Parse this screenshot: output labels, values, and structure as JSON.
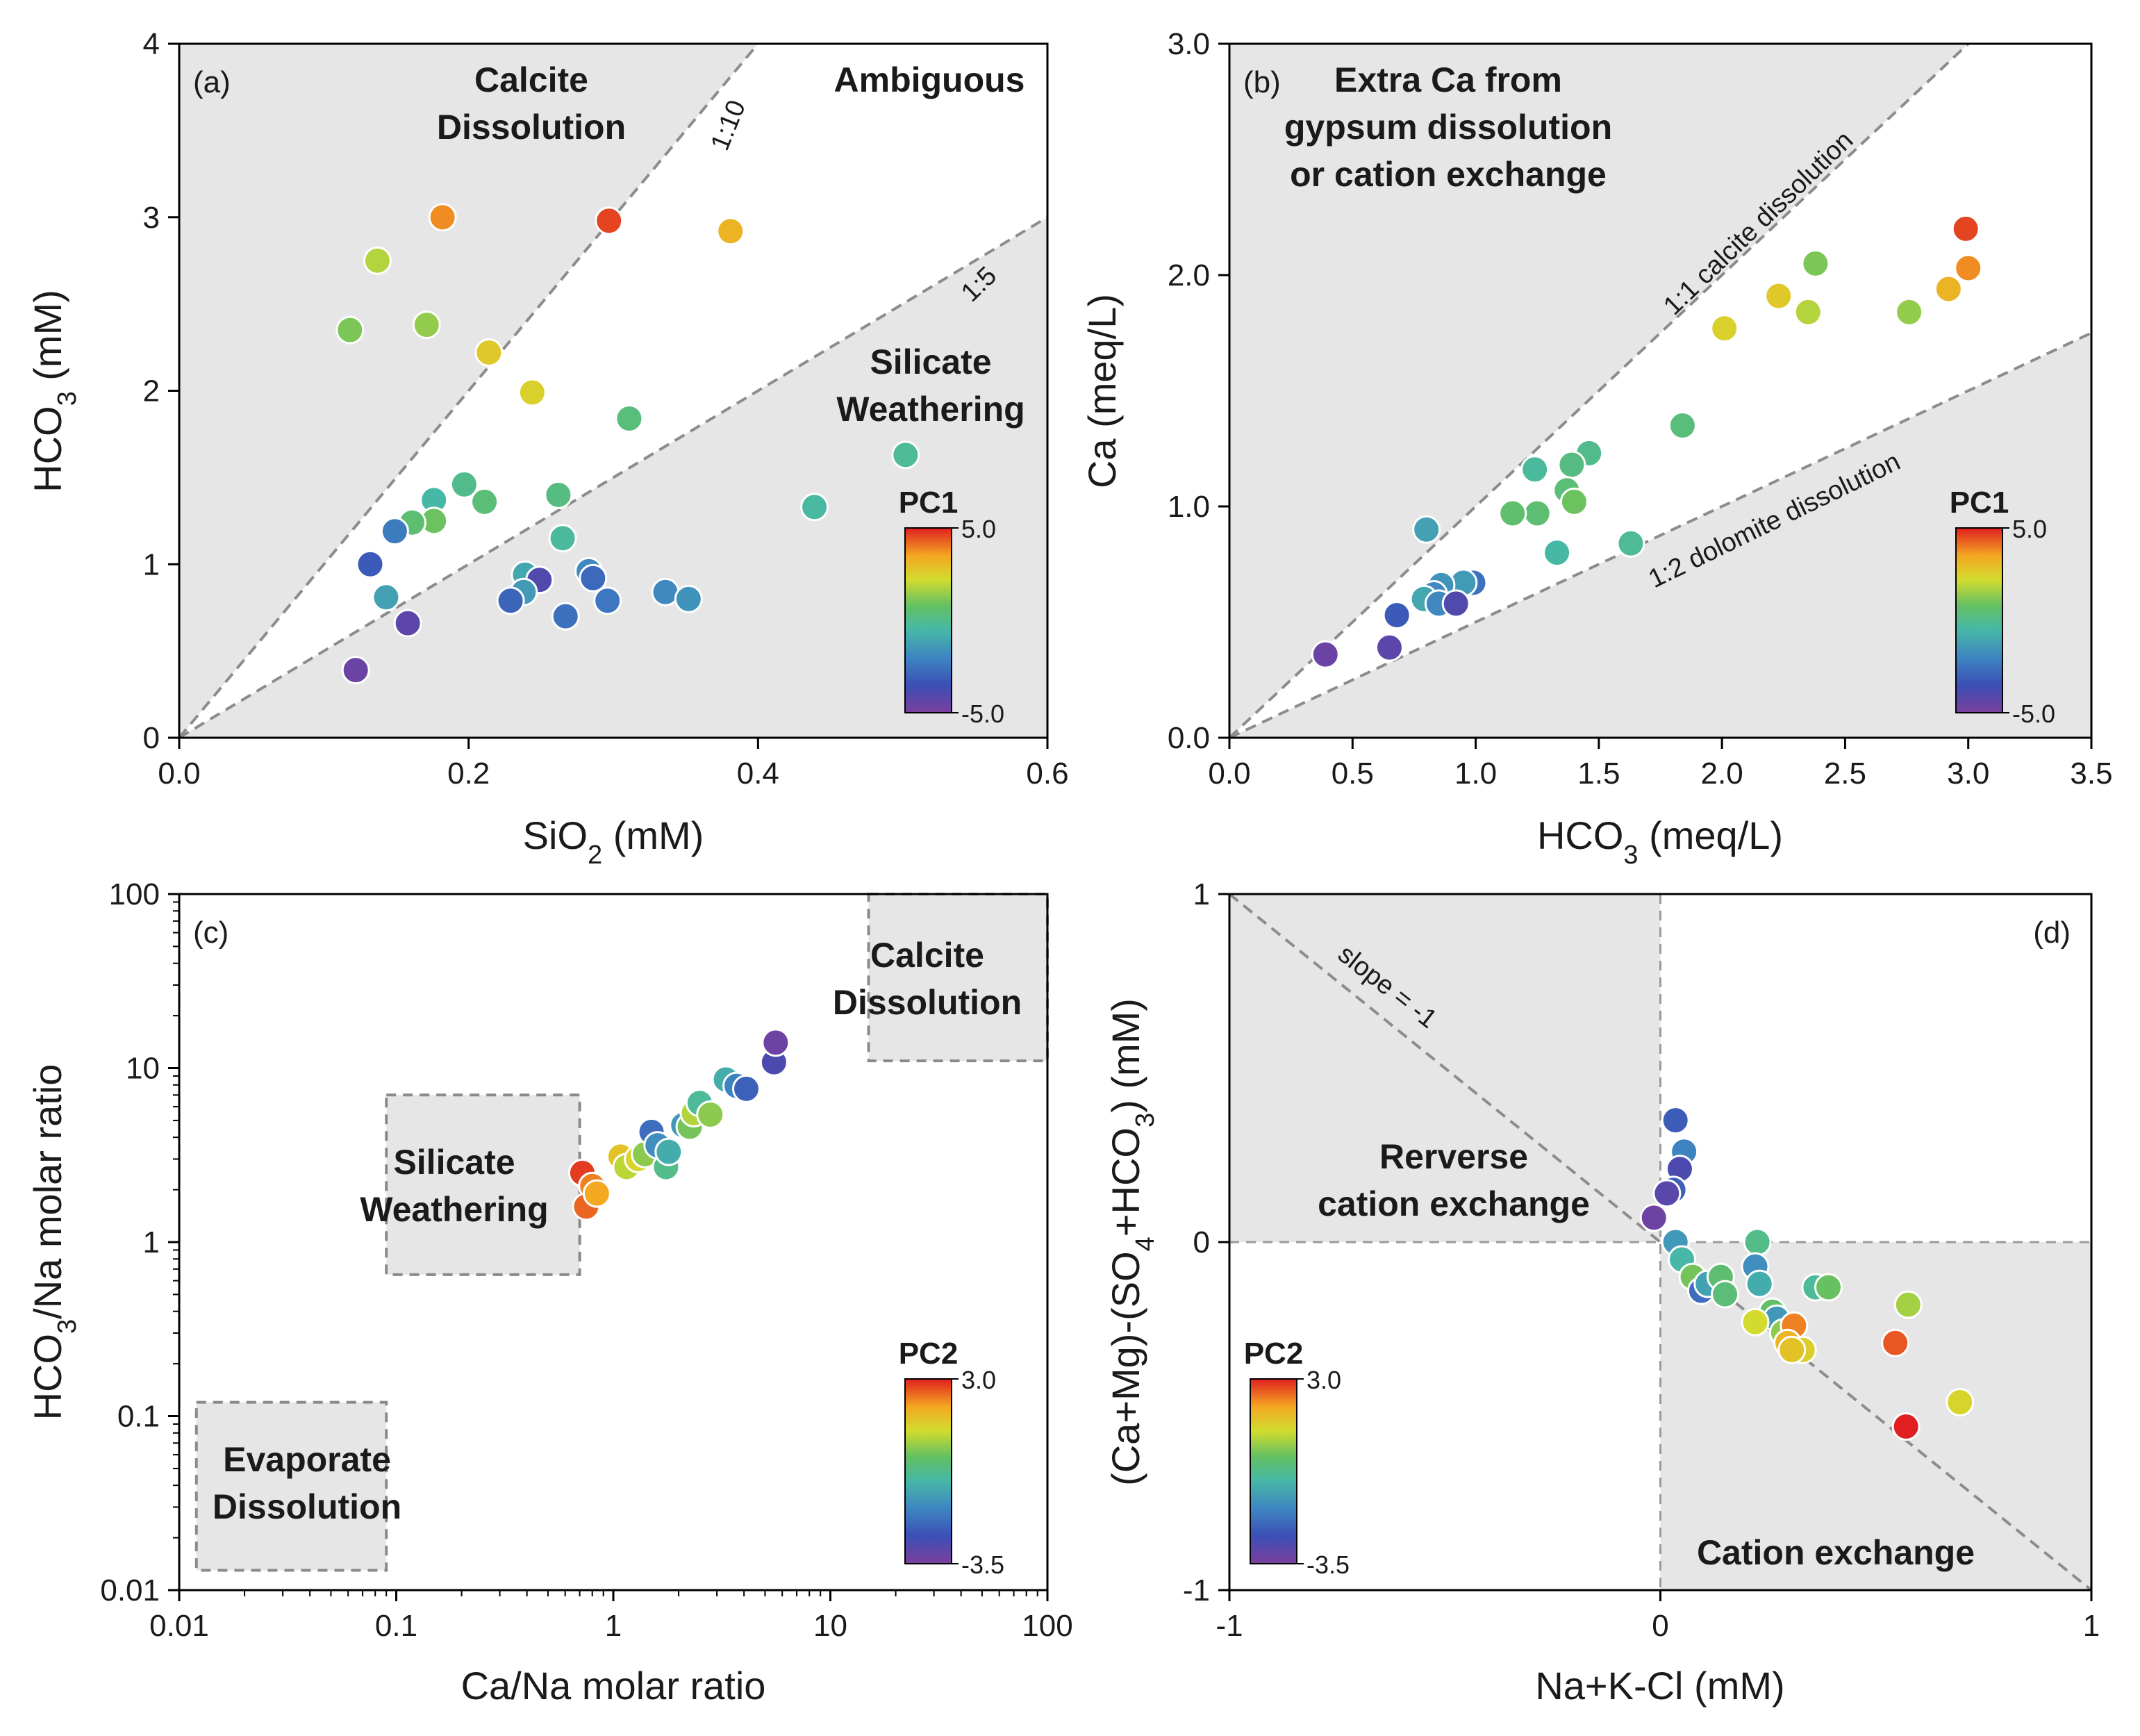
{
  "chart_data": [
    {
      "id": "a",
      "type": "scatter",
      "panel_label": "(a)",
      "xlabel": "SiO2 (mM)",
      "ylabel": "HCO3 (mM)",
      "xlim": [
        0,
        0.6
      ],
      "ylim": [
        0,
        4
      ],
      "xscale": "linear",
      "yscale": "linear",
      "xticks": [
        0,
        0.2,
        0.4,
        0.6
      ],
      "xtick_labels": [
        "0.0",
        "0.2",
        "0.4",
        "0.6"
      ],
      "yticks": [
        0,
        1,
        2,
        3,
        4
      ],
      "ytick_labels": [
        "0",
        "1",
        "2",
        "3",
        "4"
      ],
      "regions": [
        {
          "name": "calcite-dissolution-region",
          "polygon": [
            [
              0,
              0
            ],
            [
              0.0,
              4
            ],
            [
              0.4,
              4
            ]
          ]
        },
        {
          "name": "silicate-weathering-region",
          "polygon": [
            [
              0,
              0
            ],
            [
              0.6,
              3
            ],
            [
              0.6,
              0
            ]
          ]
        }
      ],
      "lines": [
        {
          "name": "ratio-1-10-line",
          "label": "1:10",
          "from": [
            0,
            0
          ],
          "to": [
            0.4,
            4
          ]
        },
        {
          "name": "ratio-1-5-line",
          "label": "1:5",
          "from": [
            0,
            0
          ],
          "to": [
            0.6,
            3
          ]
        }
      ],
      "region_labels": [
        {
          "lines": [
            "Calcite",
            "Dissolution"
          ]
        },
        {
          "lines": [
            "Ambiguous"
          ]
        },
        {
          "lines": [
            "Silicate",
            "Weathering"
          ]
        }
      ],
      "colorbar": {
        "title": "PC1",
        "max_label": "5.0",
        "min_label": "-5.0",
        "min": -5,
        "max": 5
      },
      "points": [
        {
          "x": 0.182,
          "y": 3.0,
          "c": 3.8
        },
        {
          "x": 0.297,
          "y": 2.98,
          "c": 4.6
        },
        {
          "x": 0.381,
          "y": 2.92,
          "c": 3.2
        },
        {
          "x": 0.137,
          "y": 2.75,
          "c": 1.8
        },
        {
          "x": 0.118,
          "y": 2.35,
          "c": 1.1
        },
        {
          "x": 0.171,
          "y": 2.38,
          "c": 1.4
        },
        {
          "x": 0.214,
          "y": 2.22,
          "c": 2.7
        },
        {
          "x": 0.244,
          "y": 1.99,
          "c": 2.5
        },
        {
          "x": 0.311,
          "y": 1.84,
          "c": 0.3
        },
        {
          "x": 0.502,
          "y": 1.63,
          "c": -0.2
        },
        {
          "x": 0.439,
          "y": 1.33,
          "c": -0.4
        },
        {
          "x": 0.197,
          "y": 1.46,
          "c": 0.0
        },
        {
          "x": 0.211,
          "y": 1.36,
          "c": 0.4
        },
        {
          "x": 0.176,
          "y": 1.37,
          "c": -0.5
        },
        {
          "x": 0.176,
          "y": 1.25,
          "c": 0.9
        },
        {
          "x": 0.161,
          "y": 1.24,
          "c": 0.5
        },
        {
          "x": 0.262,
          "y": 1.4,
          "c": 0.2
        },
        {
          "x": 0.265,
          "y": 1.15,
          "c": -0.3
        },
        {
          "x": 0.149,
          "y": 1.19,
          "c": -2.3
        },
        {
          "x": 0.132,
          "y": 1.0,
          "c": -3.2
        },
        {
          "x": 0.143,
          "y": 0.81,
          "c": -1.2
        },
        {
          "x": 0.158,
          "y": 0.66,
          "c": -4.3
        },
        {
          "x": 0.122,
          "y": 0.39,
          "c": -4.6
        },
        {
          "x": 0.239,
          "y": 0.94,
          "c": -1.0
        },
        {
          "x": 0.249,
          "y": 0.91,
          "c": -4.0
        },
        {
          "x": 0.238,
          "y": 0.84,
          "c": -1.4
        },
        {
          "x": 0.229,
          "y": 0.79,
          "c": -2.9
        },
        {
          "x": 0.283,
          "y": 0.96,
          "c": -1.9
        },
        {
          "x": 0.286,
          "y": 0.92,
          "c": -2.8
        },
        {
          "x": 0.267,
          "y": 0.7,
          "c": -2.6
        },
        {
          "x": 0.296,
          "y": 0.79,
          "c": -2.4
        },
        {
          "x": 0.336,
          "y": 0.84,
          "c": -1.9
        },
        {
          "x": 0.352,
          "y": 0.8,
          "c": -1.6
        }
      ]
    },
    {
      "id": "b",
      "type": "scatter",
      "panel_label": "(b)",
      "xlabel": "HCO3 (meq/L)",
      "ylabel": "Ca (meq/L)",
      "xlim": [
        0,
        3.5
      ],
      "ylim": [
        0,
        3.0
      ],
      "xscale": "linear",
      "yscale": "linear",
      "xticks": [
        0,
        0.5,
        1.0,
        1.5,
        2.0,
        2.5,
        3.0,
        3.5
      ],
      "xtick_labels": [
        "0.0",
        "0.5",
        "1.0",
        "1.5",
        "2.0",
        "2.5",
        "3.0",
        "3.5"
      ],
      "yticks": [
        0,
        1.0,
        2.0,
        3.0
      ],
      "ytick_labels": [
        "0.0",
        "1.0",
        "2.0",
        "3.0"
      ],
      "regions": [
        {
          "name": "extra-ca-region",
          "polygon": [
            [
              0,
              0
            ],
            [
              0,
              3
            ],
            [
              3,
              3
            ]
          ]
        },
        {
          "name": "lower-region",
          "polygon": [
            [
              0,
              0
            ],
            [
              3.5,
              1.75
            ],
            [
              3.5,
              0
            ]
          ]
        }
      ],
      "lines": [
        {
          "name": "calcite-1-1-line",
          "label": "1:1 calcite dissolution",
          "from": [
            0,
            0
          ],
          "to": [
            3,
            3
          ]
        },
        {
          "name": "dolomite-1-2-line",
          "label": "1:2 dolomite dissolution",
          "from": [
            0,
            0
          ],
          "to": [
            3.5,
            1.75
          ]
        }
      ],
      "region_labels": [
        {
          "lines": [
            "Extra Ca from",
            "gypsum dissolution",
            "or cation exchange"
          ]
        }
      ],
      "colorbar": {
        "title": "PC1",
        "max_label": "5.0",
        "min_label": "-5.0",
        "min": -5,
        "max": 5
      },
      "points": [
        {
          "x": 2.99,
          "y": 2.2,
          "c": 4.6
        },
        {
          "x": 3.0,
          "y": 2.03,
          "c": 3.8
        },
        {
          "x": 2.92,
          "y": 1.94,
          "c": 3.2
        },
        {
          "x": 2.76,
          "y": 1.84,
          "c": 1.4
        },
        {
          "x": 2.38,
          "y": 2.05,
          "c": 1.1
        },
        {
          "x": 2.23,
          "y": 1.91,
          "c": 2.7
        },
        {
          "x": 2.35,
          "y": 1.84,
          "c": 1.8
        },
        {
          "x": 2.01,
          "y": 1.77,
          "c": 2.5
        },
        {
          "x": 1.84,
          "y": 1.35,
          "c": 0.3
        },
        {
          "x": 1.63,
          "y": 0.84,
          "c": -0.2
        },
        {
          "x": 1.46,
          "y": 1.23,
          "c": 0.0
        },
        {
          "x": 1.39,
          "y": 1.18,
          "c": 0.2
        },
        {
          "x": 1.37,
          "y": 1.07,
          "c": 0.4
        },
        {
          "x": 1.4,
          "y": 1.02,
          "c": 0.9
        },
        {
          "x": 1.24,
          "y": 1.16,
          "c": -0.3
        },
        {
          "x": 1.25,
          "y": 0.97,
          "c": 0.5
        },
        {
          "x": 1.15,
          "y": 0.97,
          "c": 0.6
        },
        {
          "x": 1.33,
          "y": 0.8,
          "c": -0.5
        },
        {
          "x": 0.8,
          "y": 0.9,
          "c": -1.2
        },
        {
          "x": 0.99,
          "y": 0.67,
          "c": -2.6
        },
        {
          "x": 0.95,
          "y": 0.67,
          "c": -1.4
        },
        {
          "x": 0.86,
          "y": 0.66,
          "c": -1.6
        },
        {
          "x": 0.83,
          "y": 0.62,
          "c": -1.9
        },
        {
          "x": 0.79,
          "y": 0.6,
          "c": -1.0
        },
        {
          "x": 0.85,
          "y": 0.58,
          "c": -1.9
        },
        {
          "x": 0.92,
          "y": 0.58,
          "c": -4.0
        },
        {
          "x": 0.68,
          "y": 0.53,
          "c": -3.2
        },
        {
          "x": 0.65,
          "y": 0.39,
          "c": -4.3
        },
        {
          "x": 0.39,
          "y": 0.36,
          "c": -4.6
        }
      ]
    },
    {
      "id": "c",
      "type": "scatter",
      "panel_label": "(c)",
      "xlabel": "Ca/Na molar ratio",
      "ylabel": "HCO3/Na molar ratio",
      "xlim": [
        0.01,
        100
      ],
      "ylim": [
        0.01,
        100
      ],
      "xscale": "log",
      "yscale": "log",
      "xticks": [
        0.01,
        0.1,
        1,
        10,
        100
      ],
      "xtick_labels": [
        "0.01",
        "0.1",
        "1",
        "10",
        "100"
      ],
      "yticks": [
        0.01,
        0.1,
        1,
        10,
        100
      ],
      "ytick_labels": [
        "0.01",
        "0.1",
        "1",
        "10",
        "100"
      ],
      "regions": [
        {
          "name": "evaporate-dissolution-box",
          "xrange": [
            0.012,
            0.09
          ],
          "yrange": [
            0.013,
            0.12
          ]
        },
        {
          "name": "silicate-weathering-box",
          "xrange": [
            0.09,
            0.7
          ],
          "yrange": [
            0.65,
            7.0
          ]
        },
        {
          "name": "calcite-dissolution-box",
          "xrange": [
            15,
            100
          ],
          "yrange": [
            11,
            100
          ]
        }
      ],
      "region_labels": [
        {
          "lines": [
            "Evaporate",
            "Dissolution"
          ]
        },
        {
          "lines": [
            "Silicate",
            "Weathering"
          ]
        },
        {
          "lines": [
            "Calcite",
            "Dissolution"
          ]
        }
      ],
      "colorbar": {
        "title": "PC2",
        "max_label": "3.0",
        "min_label": "-3.5",
        "min": -3.5,
        "max": 3.0
      },
      "points": [
        {
          "x": 0.72,
          "y": 2.5,
          "c": 2.8
        },
        {
          "x": 0.8,
          "y": 2.1,
          "c": 2.3
        },
        {
          "x": 0.75,
          "y": 1.6,
          "c": 2.5
        },
        {
          "x": 0.84,
          "y": 1.9,
          "c": 2.0
        },
        {
          "x": 1.08,
          "y": 3.1,
          "c": 1.6
        },
        {
          "x": 1.15,
          "y": 2.7,
          "c": 1.0
        },
        {
          "x": 1.3,
          "y": 3.0,
          "c": 1.3
        },
        {
          "x": 1.4,
          "y": 3.2,
          "c": 0.6
        },
        {
          "x": 1.5,
          "y": 4.3,
          "c": -2.0
        },
        {
          "x": 1.6,
          "y": 3.6,
          "c": -1.4
        },
        {
          "x": 1.75,
          "y": 2.7,
          "c": -0.2
        },
        {
          "x": 1.8,
          "y": 3.3,
          "c": -0.8
        },
        {
          "x": 2.1,
          "y": 4.7,
          "c": -1.2
        },
        {
          "x": 2.25,
          "y": 4.6,
          "c": 0.4
        },
        {
          "x": 2.35,
          "y": 5.5,
          "c": 0.9
        },
        {
          "x": 2.5,
          "y": 6.3,
          "c": -0.4
        },
        {
          "x": 2.8,
          "y": 5.4,
          "c": 0.6
        },
        {
          "x": 3.3,
          "y": 8.6,
          "c": -0.8
        },
        {
          "x": 3.7,
          "y": 7.9,
          "c": -1.6
        },
        {
          "x": 4.1,
          "y": 7.6,
          "c": -2.2
        },
        {
          "x": 5.5,
          "y": 10.8,
          "c": -2.8
        },
        {
          "x": 5.6,
          "y": 14.0,
          "c": -3.3
        }
      ]
    },
    {
      "id": "d",
      "type": "scatter",
      "panel_label": "(d)",
      "xlabel": "Na+K-Cl (mM)",
      "ylabel": "(Ca+Mg)-(SO4+HCO3) (mM)",
      "xlim": [
        -1,
        1
      ],
      "ylim": [
        -1,
        1
      ],
      "xscale": "linear",
      "yscale": "linear",
      "xticks": [
        -1,
        0,
        1
      ],
      "xtick_labels": [
        "-1",
        "0",
        "1"
      ],
      "yticks": [
        -1,
        0,
        1
      ],
      "ytick_labels": [
        "-1",
        "0",
        "1"
      ],
      "regions": [
        {
          "name": "reverse-cation-exchange-region",
          "xrange": [
            -1,
            0
          ],
          "yrange": [
            0,
            1
          ]
        },
        {
          "name": "cation-exchange-region",
          "xrange": [
            0,
            1
          ],
          "yrange": [
            -1,
            0
          ]
        }
      ],
      "lines": [
        {
          "name": "slope-minus-1-line",
          "label": "slope = -1",
          "from": [
            -1,
            1
          ],
          "to": [
            1,
            -1
          ]
        }
      ],
      "region_labels": [
        {
          "lines": [
            "Rerverse",
            "cation exchange"
          ]
        },
        {
          "lines": [
            "Cation exchange"
          ]
        }
      ],
      "colorbar": {
        "title": "PC2",
        "max_label": "3.0",
        "min_label": "-3.5",
        "min": -3.5,
        "max": 3.0
      },
      "points": [
        {
          "x": 0.035,
          "y": 0.35,
          "c": -2.3
        },
        {
          "x": 0.055,
          "y": 0.26,
          "c": -1.6
        },
        {
          "x": 0.045,
          "y": 0.21,
          "c": -2.8
        },
        {
          "x": 0.03,
          "y": 0.15,
          "c": -2.2
        },
        {
          "x": 0.015,
          "y": 0.14,
          "c": -3.0
        },
        {
          "x": -0.015,
          "y": 0.07,
          "c": -3.3
        },
        {
          "x": 0.035,
          "y": 0.0,
          "c": -1.2
        },
        {
          "x": 0.05,
          "y": -0.05,
          "c": -0.6
        },
        {
          "x": 0.075,
          "y": -0.1,
          "c": 0.4
        },
        {
          "x": 0.095,
          "y": -0.14,
          "c": -2.0
        },
        {
          "x": 0.11,
          "y": -0.12,
          "c": -1.0
        },
        {
          "x": 0.14,
          "y": -0.1,
          "c": 0.1
        },
        {
          "x": 0.15,
          "y": -0.15,
          "c": 0.0
        },
        {
          "x": 0.225,
          "y": 0.0,
          "c": -0.2
        },
        {
          "x": 0.22,
          "y": -0.07,
          "c": -1.4
        },
        {
          "x": 0.23,
          "y": -0.12,
          "c": -0.8
        },
        {
          "x": 0.26,
          "y": -0.2,
          "c": 0.2
        },
        {
          "x": 0.27,
          "y": -0.22,
          "c": -1.2
        },
        {
          "x": 0.22,
          "y": -0.23,
          "c": 1.2
        },
        {
          "x": 0.285,
          "y": -0.26,
          "c": 0.6
        },
        {
          "x": 0.31,
          "y": -0.24,
          "c": 2.3
        },
        {
          "x": 0.295,
          "y": -0.29,
          "c": 1.8
        },
        {
          "x": 0.33,
          "y": -0.31,
          "c": 1.4
        },
        {
          "x": 0.305,
          "y": -0.31,
          "c": 1.6
        },
        {
          "x": 0.36,
          "y": -0.13,
          "c": -0.4
        },
        {
          "x": 0.39,
          "y": -0.13,
          "c": 0.3
        },
        {
          "x": 0.575,
          "y": -0.18,
          "c": 0.8
        },
        {
          "x": 0.545,
          "y": -0.29,
          "c": 2.6
        },
        {
          "x": 0.57,
          "y": -0.53,
          "c": 3.0
        },
        {
          "x": 0.695,
          "y": -0.46,
          "c": 1.3
        }
      ]
    }
  ]
}
